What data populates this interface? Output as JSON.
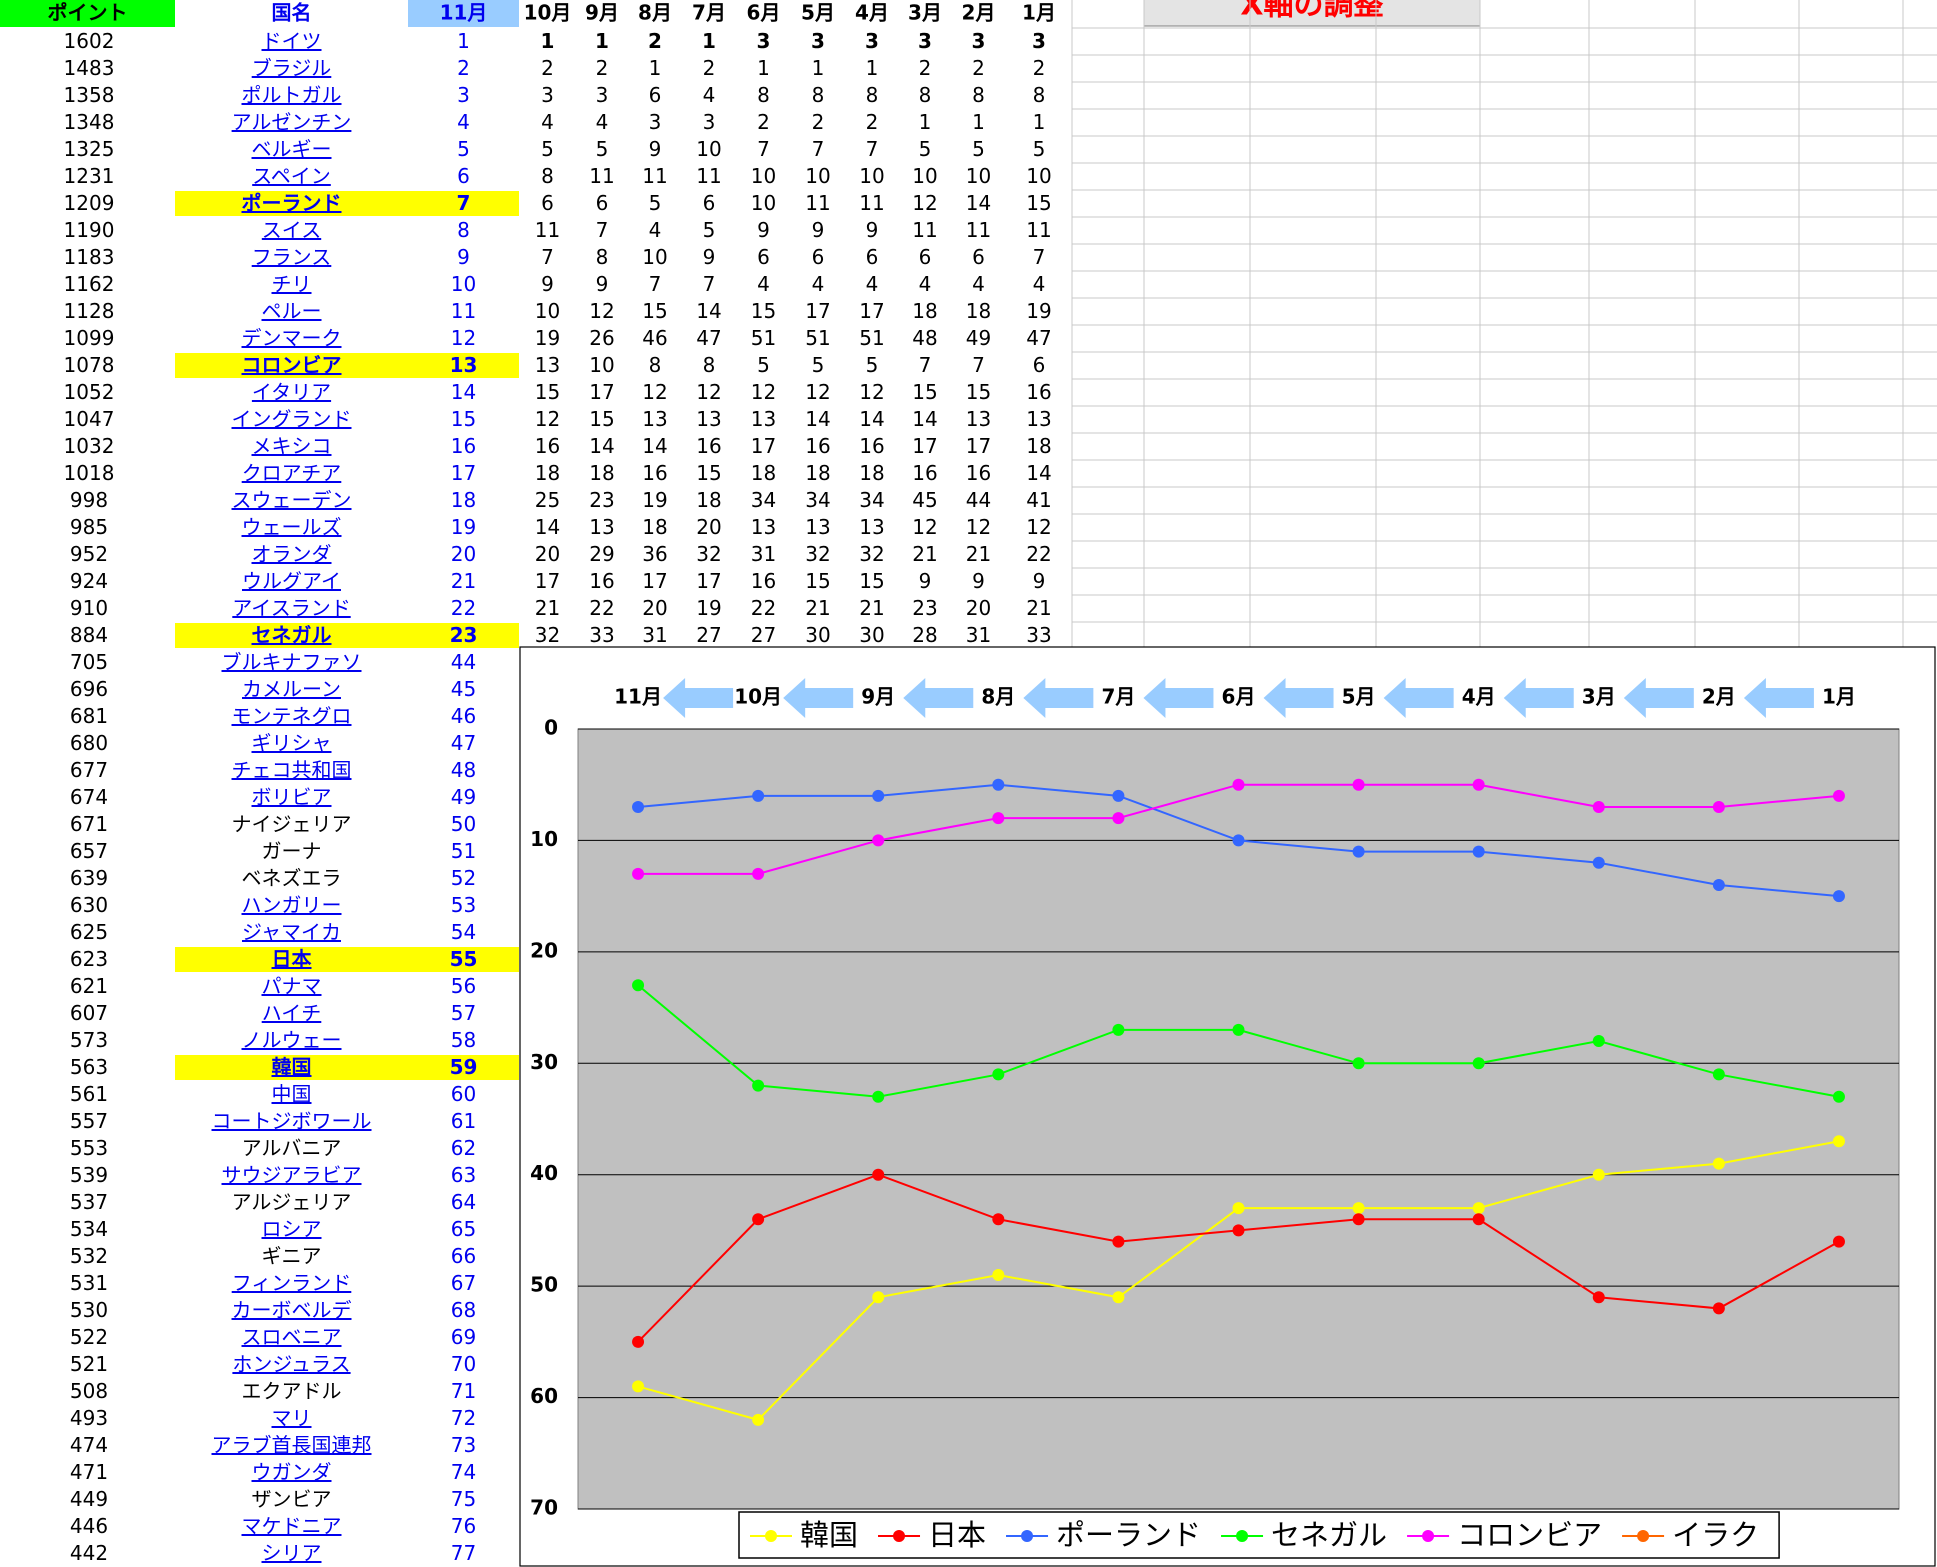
{
  "button": {
    "label": "X軸の調整"
  },
  "table": {
    "headers": [
      "ポイント",
      "国名",
      "11月",
      "10月",
      "9月",
      "8月",
      "7月",
      "6月",
      "5月",
      "4月",
      "3月",
      "2月",
      "1月"
    ],
    "rows": [
      {
        "points": 1602,
        "name": "ドイツ",
        "rank": 1,
        "link": true,
        "history": [
          1,
          1,
          2,
          1,
          3,
          3,
          3,
          3,
          3,
          3
        ]
      },
      {
        "points": 1483,
        "name": "ブラジル",
        "rank": 2,
        "link": true,
        "history": [
          2,
          2,
          1,
          2,
          1,
          1,
          1,
          2,
          2,
          2
        ]
      },
      {
        "points": 1358,
        "name": "ポルトガル",
        "rank": 3,
        "link": true,
        "history": [
          3,
          3,
          6,
          4,
          8,
          8,
          8,
          8,
          8,
          8
        ]
      },
      {
        "points": 1348,
        "name": "アルゼンチン",
        "rank": 4,
        "link": true,
        "history": [
          4,
          4,
          3,
          3,
          2,
          2,
          2,
          1,
          1,
          1
        ]
      },
      {
        "points": 1325,
        "name": "ベルギー",
        "rank": 5,
        "link": true,
        "history": [
          5,
          5,
          9,
          10,
          7,
          7,
          7,
          5,
          5,
          5
        ]
      },
      {
        "points": 1231,
        "name": "スペイン",
        "rank": 6,
        "link": true,
        "history": [
          8,
          11,
          11,
          11,
          10,
          10,
          10,
          10,
          10,
          10
        ]
      },
      {
        "points": 1209,
        "name": "ポーランド",
        "rank": 7,
        "link": true,
        "highlight": true,
        "history": [
          6,
          6,
          5,
          6,
          10,
          11,
          11,
          12,
          14,
          15
        ]
      },
      {
        "points": 1190,
        "name": "スイス",
        "rank": 8,
        "link": true,
        "history": [
          11,
          7,
          4,
          5,
          9,
          9,
          9,
          11,
          11,
          11
        ]
      },
      {
        "points": 1183,
        "name": "フランス",
        "rank": 9,
        "link": true,
        "history": [
          7,
          8,
          10,
          9,
          6,
          6,
          6,
          6,
          6,
          7
        ]
      },
      {
        "points": 1162,
        "name": "チリ",
        "rank": 10,
        "link": true,
        "history": [
          9,
          9,
          7,
          7,
          4,
          4,
          4,
          4,
          4,
          4
        ]
      },
      {
        "points": 1128,
        "name": "ペルー",
        "rank": 11,
        "link": true,
        "history": [
          10,
          12,
          15,
          14,
          15,
          17,
          17,
          18,
          18,
          19
        ]
      },
      {
        "points": 1099,
        "name": "デンマーク",
        "rank": 12,
        "link": true,
        "history": [
          19,
          26,
          46,
          47,
          51,
          51,
          51,
          48,
          49,
          47
        ]
      },
      {
        "points": 1078,
        "name": "コロンビア",
        "rank": 13,
        "link": true,
        "highlight": true,
        "history": [
          13,
          10,
          8,
          8,
          5,
          5,
          5,
          7,
          7,
          6
        ]
      },
      {
        "points": 1052,
        "name": "イタリア",
        "rank": 14,
        "link": true,
        "history": [
          15,
          17,
          12,
          12,
          12,
          12,
          12,
          15,
          15,
          16
        ]
      },
      {
        "points": 1047,
        "name": "イングランド",
        "rank": 15,
        "link": true,
        "history": [
          12,
          15,
          13,
          13,
          13,
          14,
          14,
          14,
          13,
          13
        ]
      },
      {
        "points": 1032,
        "name": "メキシコ",
        "rank": 16,
        "link": true,
        "history": [
          16,
          14,
          14,
          16,
          17,
          16,
          16,
          17,
          17,
          18
        ]
      },
      {
        "points": 1018,
        "name": "クロアチア",
        "rank": 17,
        "link": true,
        "history": [
          18,
          18,
          16,
          15,
          18,
          18,
          18,
          16,
          16,
          14
        ]
      },
      {
        "points": 998,
        "name": "スウェーデン",
        "rank": 18,
        "link": true,
        "history": [
          25,
          23,
          19,
          18,
          34,
          34,
          34,
          45,
          44,
          41
        ]
      },
      {
        "points": 985,
        "name": "ウェールズ",
        "rank": 19,
        "link": true,
        "history": [
          14,
          13,
          18,
          20,
          13,
          13,
          13,
          12,
          12,
          12
        ]
      },
      {
        "points": 952,
        "name": "オランダ",
        "rank": 20,
        "link": true,
        "history": [
          20,
          29,
          36,
          32,
          31,
          32,
          32,
          21,
          21,
          22
        ]
      },
      {
        "points": 924,
        "name": "ウルグアイ",
        "rank": 21,
        "link": true,
        "history": [
          17,
          16,
          17,
          17,
          16,
          15,
          15,
          9,
          9,
          9
        ]
      },
      {
        "points": 910,
        "name": "アイスランド",
        "rank": 22,
        "link": true,
        "history": [
          21,
          22,
          20,
          19,
          22,
          21,
          21,
          23,
          20,
          21
        ]
      },
      {
        "points": 884,
        "name": "セネガル",
        "rank": 23,
        "link": true,
        "highlight": true,
        "history": [
          32,
          33,
          31,
          27,
          27,
          30,
          30,
          28,
          31,
          33
        ]
      },
      {
        "points": 705,
        "name": "ブルキナファソ",
        "rank": 44,
        "link": true
      },
      {
        "points": 696,
        "name": "カメルーン",
        "rank": 45,
        "link": true
      },
      {
        "points": 681,
        "name": "モンテネグロ",
        "rank": 46,
        "link": true
      },
      {
        "points": 680,
        "name": "ギリシャ",
        "rank": 47,
        "link": true
      },
      {
        "points": 677,
        "name": "チェコ共和国",
        "rank": 48,
        "link": true
      },
      {
        "points": 674,
        "name": "ボリビア",
        "rank": 49,
        "link": true
      },
      {
        "points": 671,
        "name": "ナイジェリア",
        "rank": 50,
        "link": false
      },
      {
        "points": 657,
        "name": "ガーナ",
        "rank": 51,
        "link": false
      },
      {
        "points": 639,
        "name": "ベネズエラ",
        "rank": 52,
        "link": false
      },
      {
        "points": 630,
        "name": "ハンガリー",
        "rank": 53,
        "link": true
      },
      {
        "points": 625,
        "name": "ジャマイカ",
        "rank": 54,
        "link": true
      },
      {
        "points": 623,
        "name": "日本",
        "rank": 55,
        "link": true,
        "highlight": true
      },
      {
        "points": 621,
        "name": "パナマ",
        "rank": 56,
        "link": true
      },
      {
        "points": 607,
        "name": "ハイチ",
        "rank": 57,
        "link": true
      },
      {
        "points": 573,
        "name": "ノルウェー",
        "rank": 58,
        "link": true
      },
      {
        "points": 563,
        "name": "韓国",
        "rank": 59,
        "link": true,
        "highlight": true
      },
      {
        "points": 561,
        "name": "中国",
        "rank": 60,
        "link": true
      },
      {
        "points": 557,
        "name": "コートジボワール",
        "rank": 61,
        "link": true
      },
      {
        "points": 553,
        "name": "アルバニア",
        "rank": 62,
        "link": false
      },
      {
        "points": 539,
        "name": "サウジアラビア",
        "rank": 63,
        "link": true
      },
      {
        "points": 537,
        "name": "アルジェリア",
        "rank": 64,
        "link": false
      },
      {
        "points": 534,
        "name": "ロシア",
        "rank": 65,
        "link": true
      },
      {
        "points": 532,
        "name": "ギニア",
        "rank": 66,
        "link": false
      },
      {
        "points": 531,
        "name": "フィンランド",
        "rank": 67,
        "link": true
      },
      {
        "points": 530,
        "name": "カーボベルデ",
        "rank": 68,
        "link": true
      },
      {
        "points": 522,
        "name": "スロベニア",
        "rank": 69,
        "link": true
      },
      {
        "points": 521,
        "name": "ホンジュラス",
        "rank": 70,
        "link": true
      },
      {
        "points": 508,
        "name": "エクアドル",
        "rank": 71,
        "link": false
      },
      {
        "points": 493,
        "name": "マリ",
        "rank": 72,
        "link": true
      },
      {
        "points": 474,
        "name": "アラブ首長国連邦",
        "rank": 73,
        "link": true
      },
      {
        "points": 471,
        "name": "ウガンダ",
        "rank": 74,
        "link": true
      },
      {
        "points": 449,
        "name": "ザンビア",
        "rank": 75,
        "link": false
      },
      {
        "points": 446,
        "name": "マケドニア",
        "rank": 76,
        "link": true
      },
      {
        "points": 442,
        "name": "シリア",
        "rank": 77,
        "link": true
      }
    ]
  },
  "chart_data": {
    "type": "line",
    "categories": [
      "11月",
      "10月",
      "9月",
      "8月",
      "7月",
      "6月",
      "5月",
      "4月",
      "3月",
      "2月",
      "1月"
    ],
    "ylim": [
      0,
      70
    ],
    "yticks": [
      0,
      10,
      20,
      30,
      40,
      50,
      60,
      70
    ],
    "y_inverted": true,
    "grid": true,
    "legend": "bottom",
    "series": [
      {
        "name": "韓国",
        "color": "#ffff00",
        "values": [
          59,
          62,
          51,
          49,
          51,
          43,
          43,
          43,
          40,
          39,
          37
        ]
      },
      {
        "name": "日本",
        "color": "#ff0000",
        "values": [
          55,
          44,
          40,
          44,
          46,
          45,
          44,
          44,
          51,
          52,
          46
        ]
      },
      {
        "name": "ポーランド",
        "color": "#3366ff",
        "values": [
          7,
          6,
          6,
          5,
          6,
          10,
          11,
          11,
          12,
          14,
          15
        ]
      },
      {
        "name": "セネガル",
        "color": "#00ff00",
        "values": [
          23,
          32,
          33,
          31,
          27,
          27,
          30,
          30,
          28,
          31,
          33
        ]
      },
      {
        "name": "コロンビア",
        "color": "#ff00ff",
        "values": [
          13,
          13,
          10,
          8,
          8,
          5,
          5,
          5,
          7,
          7,
          6
        ]
      },
      {
        "name": "イラク",
        "color": "#ff6600",
        "values": [
          null,
          null,
          null,
          null,
          null,
          null,
          null,
          null,
          null,
          null,
          null
        ]
      }
    ]
  }
}
